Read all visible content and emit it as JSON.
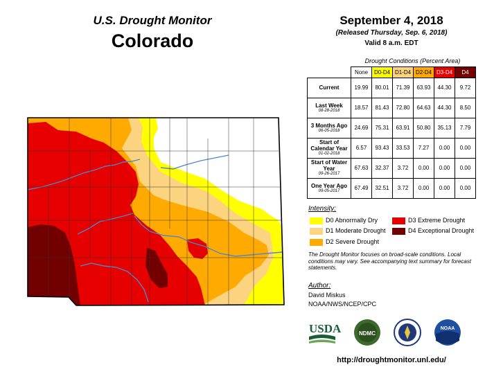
{
  "header": {
    "agency": "U.S. Drought Monitor",
    "state": "Colorado",
    "date": "September 4, 2018",
    "released": "(Released Thursday, Sep. 6, 2018)",
    "valid": "Valid 8 a.m. EDT"
  },
  "table": {
    "caption": "Drought Conditions (Percent Area)",
    "columns": [
      "None",
      "D0-D4",
      "D1-D4",
      "D2-D4",
      "D3-D4",
      "D4"
    ],
    "column_colors": [
      "#ffffff",
      "#ffff00",
      "#fcd37f",
      "#ffaa00",
      "#e60000",
      "#730000"
    ],
    "rows": [
      {
        "label": "Current",
        "date": "",
        "values": [
          "19.99",
          "80.01",
          "71.39",
          "63.93",
          "44.30",
          "9.72"
        ]
      },
      {
        "label": "Last Week",
        "date": "08-28-2018",
        "values": [
          "18.57",
          "81.43",
          "72.80",
          "64.63",
          "44.30",
          "8.50"
        ]
      },
      {
        "label": "3 Months Ago",
        "date": "06-05-2018",
        "values": [
          "24.69",
          "75.31",
          "63.91",
          "50.80",
          "35.13",
          "7.79"
        ]
      },
      {
        "label": "Start of Calendar Year",
        "date": "01-02-2018",
        "values": [
          "6.57",
          "93.43",
          "33.53",
          "7.27",
          "0.00",
          "0.00"
        ]
      },
      {
        "label": "Start of Water Year",
        "date": "09-26-2017",
        "values": [
          "67.63",
          "32.37",
          "3.72",
          "0.00",
          "0.00",
          "0.00"
        ]
      },
      {
        "label": "One Year Ago",
        "date": "09-05-2017",
        "values": [
          "67.49",
          "32.51",
          "3.72",
          "0.00",
          "0.00",
          "0.00"
        ]
      }
    ]
  },
  "legend": {
    "title": "Intensity:",
    "items": [
      {
        "label": "D0 Abnormally Dry",
        "color": "#ffff00"
      },
      {
        "label": "D1 Moderate Drought",
        "color": "#fcd37f"
      },
      {
        "label": "D2 Severe Drought",
        "color": "#ffaa00"
      },
      {
        "label": "D3 Extreme Drought",
        "color": "#e60000"
      },
      {
        "label": "D4 Exceptional Drought",
        "color": "#730000"
      }
    ]
  },
  "note": "The Drought Monitor focuses on broad-scale conditions. Local conditions may vary. See accompanying text summary for forecast statements.",
  "author": {
    "title": "Author:",
    "name": "David Miskus",
    "org": "NOAA/NWS/NCEP/CPC"
  },
  "logos": [
    "USDA",
    "NDMC",
    "NOAA"
  ],
  "url": "http://droughtmonitor.unl.edu/",
  "map_colors": {
    "none": "#ffffff",
    "d0": "#ffff00",
    "d1": "#fcd37f",
    "d2": "#ffaa00",
    "d3": "#e60000",
    "d4": "#730000",
    "river": "#4f87c8",
    "county": "#333333"
  }
}
